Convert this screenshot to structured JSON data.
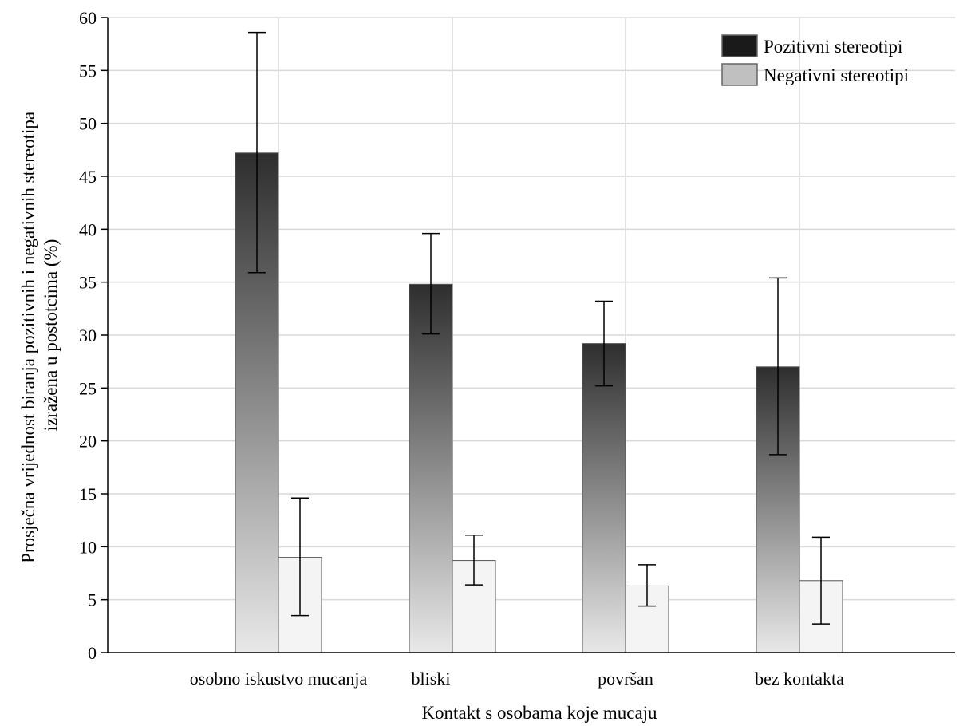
{
  "chart_data": {
    "type": "bar",
    "title": "",
    "xlabel": "Kontakt s osobama koje mucaju",
    "ylabel_lines": [
      "Prosječna vrijednost biranja pozitivnih i negativnih stereotipa",
      "izražena u postotcima (%)"
    ],
    "ylim": [
      0,
      60
    ],
    "yticks": [
      0,
      5,
      10,
      15,
      20,
      25,
      30,
      35,
      40,
      45,
      50,
      55,
      60
    ],
    "grid": true,
    "legend_position": "top-right",
    "categories": [
      "osobno iskustvo mucanja",
      "bliski",
      "površan",
      "bez kontakta"
    ],
    "series": [
      {
        "name": "Pozitivni stereotipi",
        "legend_color": "#1a1a1a",
        "gradient": [
          "#2e2e2e",
          "#e8e8e8"
        ],
        "values": [
          47.2,
          34.8,
          29.2,
          27.0
        ],
        "error_low": [
          35.9,
          30.1,
          25.2,
          18.7
        ],
        "error_high": [
          58.6,
          39.6,
          33.2,
          35.4
        ]
      },
      {
        "name": "Negativni stereotipi",
        "legend_color": "#c0c0c0",
        "gradient": [
          "#f4f4f4",
          "#f4f4f4"
        ],
        "values": [
          9.0,
          8.7,
          6.3,
          6.8
        ],
        "error_low": [
          3.5,
          6.4,
          4.4,
          2.7
        ],
        "error_high": [
          14.6,
          11.1,
          8.3,
          10.9
        ]
      }
    ]
  }
}
